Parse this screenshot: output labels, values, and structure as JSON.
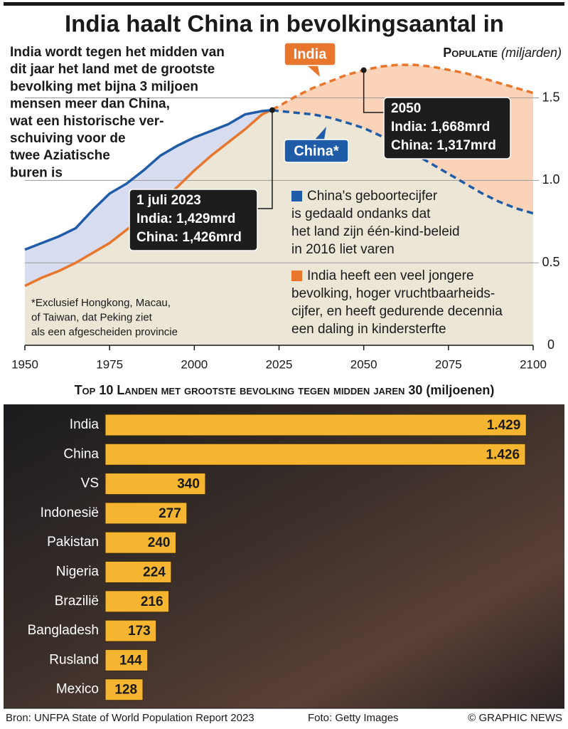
{
  "title": "India haalt China in bevolkingsaantal in",
  "source": "Bron: UNFPA State of World Population Report 2023",
  "photo_credit": "Foto: Getty Images",
  "copyright": "© GRAPHIC NEWS",
  "chart_data": [
    {
      "type": "line",
      "ylabel": "Populatie",
      "yunit": "(miljarden)",
      "intro": [
        "India wordt tegen het midden van",
        "dit jaar het land met de grootste",
        "bevolking met bijna 3 miljoen",
        "mensen meer dan China,",
        "wat een historische ver-",
        "schuiving voor de",
        "twee Aziatische",
        "buren is"
      ],
      "footnote": [
        "*Exclusief Hongkong, Macau,",
        "of Taiwan, dat Peking ziet",
        "als een afgescheiden provincie"
      ],
      "notes": [
        {
          "color": "#1f5ca8",
          "lines": [
            "China's geboortecijfer",
            "is gedaald ondanks dat",
            "het land zijn één-kind-beleid",
            "in 2016 liet varen"
          ]
        },
        {
          "color": "#e8762d",
          "lines": [
            "India heeft een veel jongere",
            "bevolking, hoger vruchtbaarheids-",
            "cijfer, en heeft gedurende decennia",
            "een daling in kindersterfte"
          ]
        }
      ],
      "annotations": [
        {
          "lines": [
            "1 juli 2023",
            "India:   1,429mrd",
            "China:  1,426mrd"
          ]
        },
        {
          "lines": [
            "2050",
            "India:   1,668mrd",
            "China:  1,317mrd"
          ]
        }
      ],
      "projection_start": 2023,
      "x": [
        1950,
        1955,
        1960,
        1965,
        1970,
        1975,
        1980,
        1985,
        1990,
        1995,
        2000,
        2005,
        2010,
        2015,
        2020,
        2023,
        2025,
        2030,
        2035,
        2040,
        2045,
        2050,
        2055,
        2060,
        2065,
        2070,
        2075,
        2080,
        2085,
        2090,
        2095,
        2100
      ],
      "series": [
        {
          "name": "India",
          "color": "#e8762d",
          "values": [
            0.36,
            0.41,
            0.45,
            0.5,
            0.56,
            0.62,
            0.7,
            0.78,
            0.87,
            0.96,
            1.06,
            1.15,
            1.23,
            1.31,
            1.4,
            1.429,
            1.45,
            1.51,
            1.56,
            1.6,
            1.64,
            1.668,
            1.69,
            1.7,
            1.7,
            1.69,
            1.67,
            1.65,
            1.62,
            1.59,
            1.56,
            1.53
          ]
        },
        {
          "name": "China*",
          "color": "#1f5ca8",
          "values": [
            0.58,
            0.62,
            0.66,
            0.71,
            0.82,
            0.92,
            0.98,
            1.06,
            1.15,
            1.21,
            1.26,
            1.3,
            1.34,
            1.4,
            1.42,
            1.426,
            1.42,
            1.41,
            1.4,
            1.38,
            1.35,
            1.317,
            1.27,
            1.22,
            1.16,
            1.1,
            1.04,
            0.98,
            0.92,
            0.87,
            0.83,
            0.8
          ]
        }
      ],
      "xlim": [
        1950,
        2100
      ],
      "xticks": [
        1950,
        1975,
        2000,
        2025,
        2050,
        2075,
        2100
      ],
      "ylim": [
        0,
        1.8
      ],
      "yticks": [
        0,
        0.5,
        {
          "value": 1,
          "label": "1.0"
        },
        1.5
      ],
      "grid": true
    },
    {
      "type": "hbar",
      "title": "Top 10 Landen met grootste bevolking tegen midden jaren 30",
      "unit": "(miljoenen)",
      "categories": [
        "India",
        "China",
        "VS",
        "Indonesië",
        "Pakistan",
        "Nigeria",
        "Brazilië",
        "Bangladesh",
        "Rusland",
        "Mexico"
      ],
      "values": [
        1429,
        1426,
        340,
        277,
        240,
        224,
        216,
        173,
        144,
        128
      ],
      "value_labels": [
        "1.429",
        "1.426",
        "340",
        "277",
        "240",
        "224",
        "216",
        "173",
        "144",
        "128"
      ],
      "color": "#f6b531",
      "xlim": [
        0,
        1450
      ]
    }
  ]
}
